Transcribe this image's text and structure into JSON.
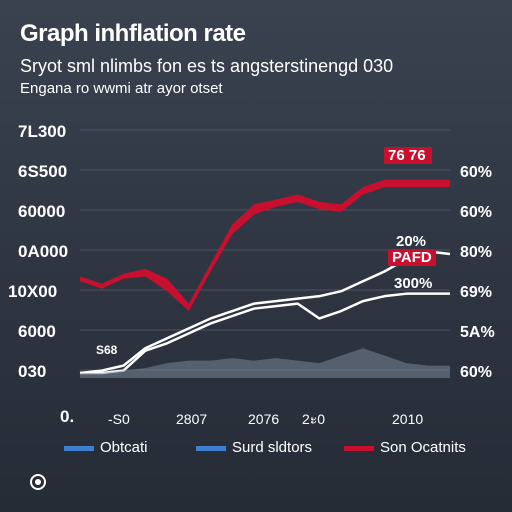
{
  "chart_data": {
    "type": "line",
    "title": "Graph inhflation rate",
    "subtitle": "Sryot sml nlimbs fon es ts angsterstinengd 030",
    "subtitle2": "Engana ro wwmi atr ayor otset",
    "x_tick_labels": [
      "-S0",
      "2807",
      "2076",
      "2ะ0",
      "2010"
    ],
    "y_left_tick_labels": [
      "7L300",
      "6S500",
      "60000",
      "0A000",
      "10X00",
      "6000",
      "030",
      "0."
    ],
    "y_right_tick_labels": [
      "60%",
      "60%",
      "80%",
      "69%",
      "5A%",
      "60%"
    ],
    "annotations": [
      {
        "text": "76 76",
        "style": "red-badge"
      },
      {
        "text": "20%",
        "style": "light"
      },
      {
        "text": "PAFD",
        "style": "red-badge"
      },
      {
        "text": "300%",
        "style": "light"
      },
      {
        "text": "S68",
        "style": "plain"
      }
    ],
    "legend": {
      "placement": "bottom",
      "items": [
        {
          "label": "Obtcati",
          "color": "#3f7fd0"
        },
        {
          "label": "Surd sldtors",
          "color": "#3f7fd0"
        },
        {
          "label": "Son Ocatnits",
          "color": "#c8102e"
        }
      ]
    },
    "x": [
      0,
      1,
      2,
      3,
      4,
      5,
      6,
      7,
      8,
      9,
      10,
      11,
      12,
      13,
      14,
      15,
      16,
      17
    ],
    "ylim": [
      0,
      100
    ],
    "series": [
      {
        "color": "#c8102e",
        "style": "band",
        "upper": [
          41,
          38,
          42,
          44,
          40,
          30,
          46,
          62,
          70,
          72,
          74,
          71,
          70,
          77,
          80,
          80,
          80,
          80
        ],
        "lower": [
          39,
          36,
          40,
          41,
          35,
          27,
          43,
          58,
          66,
          69,
          71,
          68,
          67,
          74,
          77,
          77,
          77,
          77
        ]
      },
      {
        "color": "#ffffff",
        "style": "line",
        "values": [
          2,
          3,
          5,
          12,
          16,
          20,
          24,
          27,
          30,
          31,
          32,
          33,
          35,
          39,
          43,
          48,
          51,
          50
        ]
      },
      {
        "color": "#ffffff",
        "style": "line",
        "values": [
          2,
          2,
          3,
          11,
          14,
          18,
          22,
          25,
          28,
          29,
          30,
          24,
          27,
          31,
          33,
          34,
          34,
          34
        ]
      },
      {
        "color": "#7a8596",
        "style": "area",
        "values": [
          2,
          2,
          3,
          4,
          6,
          7,
          7,
          8,
          7,
          8,
          7,
          6,
          9,
          12,
          9,
          6,
          5,
          5
        ]
      }
    ]
  }
}
